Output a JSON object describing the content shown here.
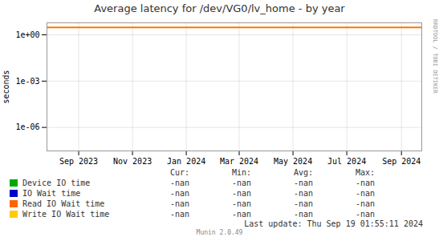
{
  "chart_data": {
    "type": "line",
    "title": "Average latency for /dev/VG0/lv_home - by year",
    "ylabel": "seconds",
    "log": "y",
    "grid": true,
    "xlim": [
      1690416000,
      1727136000
    ],
    "xticks": [
      {
        "value": 1693526400,
        "label": "Sep 2023"
      },
      {
        "value": 1698796800,
        "label": "Nov 2023"
      },
      {
        "value": 1704067200,
        "label": "Jan 2024"
      },
      {
        "value": 1709251200,
        "label": "Mar 2024"
      },
      {
        "value": 1714521600,
        "label": "May 2024"
      },
      {
        "value": 1719792000,
        "label": "Jul 2024"
      },
      {
        "value": 1725148800,
        "label": "Sep 2024"
      }
    ],
    "ylim": [
      3e-08,
      6.0
    ],
    "yticks": [
      {
        "value": 1,
        "label": "1e+00"
      },
      {
        "value": 0.001,
        "label": "1e-03"
      },
      {
        "value": 1e-06,
        "label": "1e-06"
      }
    ],
    "hlines": [
      {
        "y": 3.0,
        "color": "#ff7700"
      }
    ],
    "table_headers": [
      "Cur:",
      "Min:",
      "Avg:",
      "Max:"
    ],
    "series": [
      {
        "name": "Device IO time",
        "color": "#00aa00",
        "table_values": [
          "-nan",
          "-nan",
          "-nan",
          "-nan"
        ]
      },
      {
        "name": "IO Wait time",
        "color": "#0000cc",
        "table_values": [
          "-nan",
          "-nan",
          "-nan",
          "-nan"
        ]
      },
      {
        "name": "Read IO Wait time",
        "color": "#ff6600",
        "table_values": [
          "-nan",
          "-nan",
          "-nan",
          "-nan"
        ]
      },
      {
        "name": "Write IO Wait time",
        "color": "#ffcc00",
        "table_values": [
          "-nan",
          "-nan",
          "-nan",
          "-nan"
        ]
      }
    ],
    "annotations": [
      "Last update: Thu Sep 19 01:55:11 2024",
      "Munin 2.0.49",
      "RRDTOOL / TOBI OETIKER"
    ]
  }
}
